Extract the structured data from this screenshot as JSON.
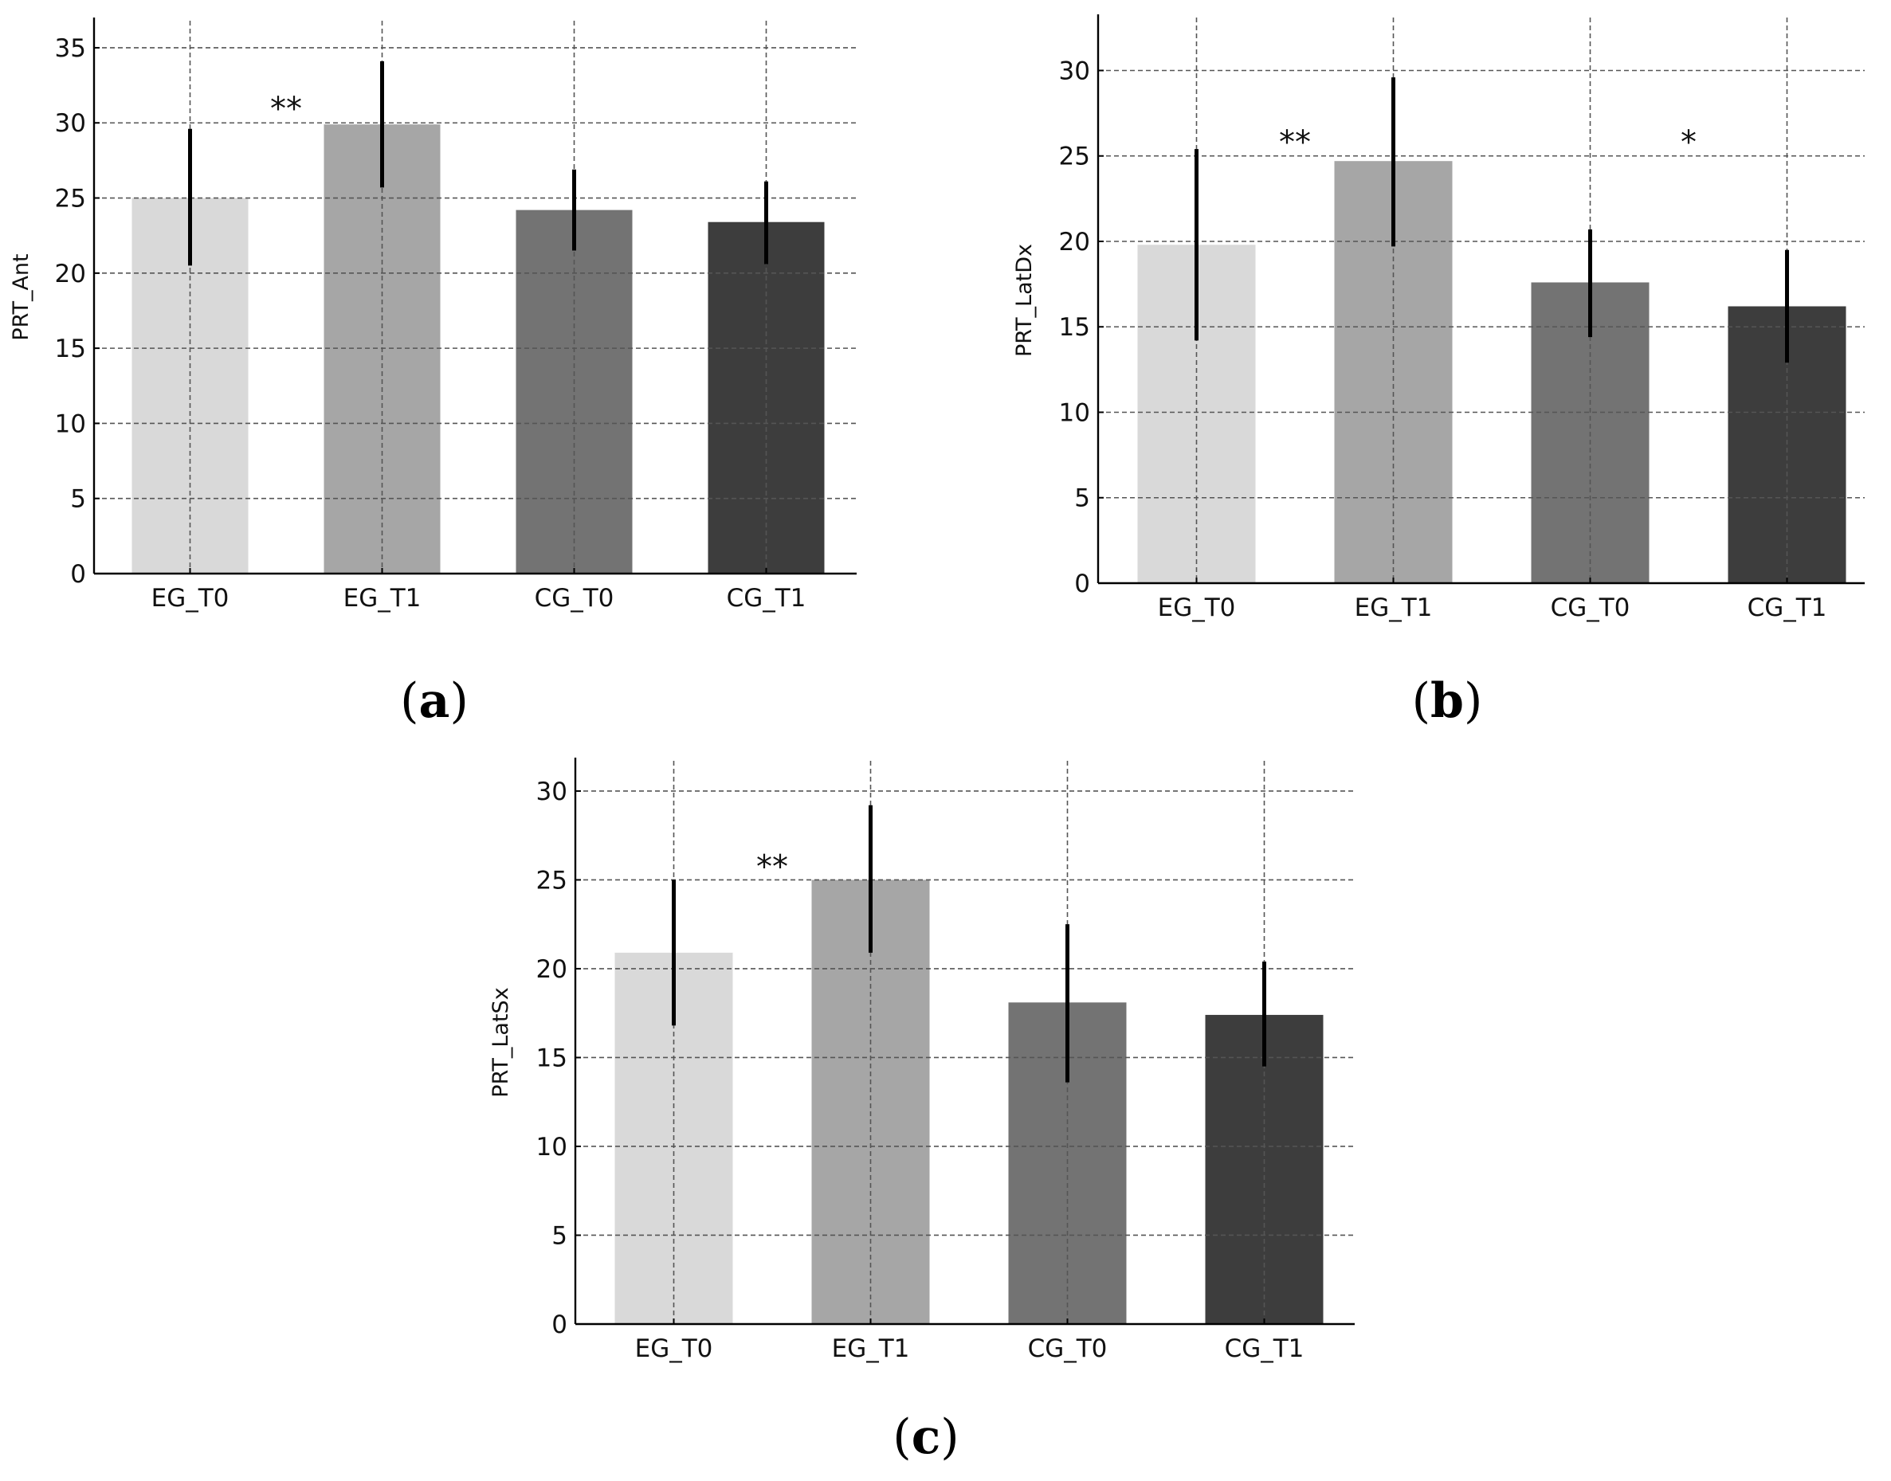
{
  "figure": {
    "panels": [
      "a",
      "b",
      "c"
    ]
  },
  "chart_data": [
    {
      "type": "bar",
      "panel_label": "a",
      "categories": [
        "EG_T0",
        "EG_T1",
        "CG_T0",
        "CG_T1"
      ],
      "values": [
        25.0,
        29.9,
        24.2,
        23.4
      ],
      "error_low": [
        20.5,
        25.7,
        21.5,
        20.6
      ],
      "error_high": [
        29.6,
        34.1,
        26.9,
        26.1
      ],
      "colors": [
        "#d9d9d9",
        "#a6a6a6",
        "#737373",
        "#3d3d3d"
      ],
      "ylabel": "PRT_Ant",
      "ylim": [
        0,
        36.8
      ],
      "yticks": [
        0,
        5,
        10,
        15,
        20,
        25,
        30,
        35
      ],
      "annotations": [
        {
          "text": "**",
          "x": 0.5,
          "y": 31.5
        }
      ],
      "grid": true
    },
    {
      "type": "bar",
      "panel_label": "b",
      "categories": [
        "EG_T0",
        "EG_T1",
        "CG_T0",
        "CG_T1"
      ],
      "values": [
        19.8,
        24.7,
        17.6,
        16.2
      ],
      "error_low": [
        14.2,
        19.7,
        14.4,
        12.9
      ],
      "error_high": [
        25.4,
        29.6,
        20.7,
        19.5
      ],
      "colors": [
        "#d9d9d9",
        "#a6a6a6",
        "#737373",
        "#3d3d3d"
      ],
      "ylabel": "PRT_LatDx",
      "ylim": [
        0,
        33.1
      ],
      "yticks": [
        0,
        5,
        10,
        15,
        20,
        25,
        30
      ],
      "annotations": [
        {
          "text": "**",
          "x": 0.5,
          "y": 26.3
        },
        {
          "text": "*",
          "x": 2.5,
          "y": 26.3
        }
      ],
      "grid": true
    },
    {
      "type": "bar",
      "panel_label": "c",
      "categories": [
        "EG_T0",
        "EG_T1",
        "CG_T0",
        "CG_T1"
      ],
      "values": [
        20.9,
        25.0,
        18.1,
        17.4
      ],
      "error_low": [
        16.8,
        20.9,
        13.6,
        14.5
      ],
      "error_high": [
        25.0,
        29.2,
        22.5,
        20.4
      ],
      "colors": [
        "#d9d9d9",
        "#a6a6a6",
        "#737373",
        "#3d3d3d"
      ],
      "ylabel": "PRT_LatSx",
      "ylim": [
        0,
        31.7
      ],
      "yticks": [
        0,
        5,
        10,
        15,
        20,
        25,
        30
      ],
      "annotations": [
        {
          "text": "**",
          "x": 0.5,
          "y": 26.2
        }
      ],
      "grid": true
    }
  ]
}
